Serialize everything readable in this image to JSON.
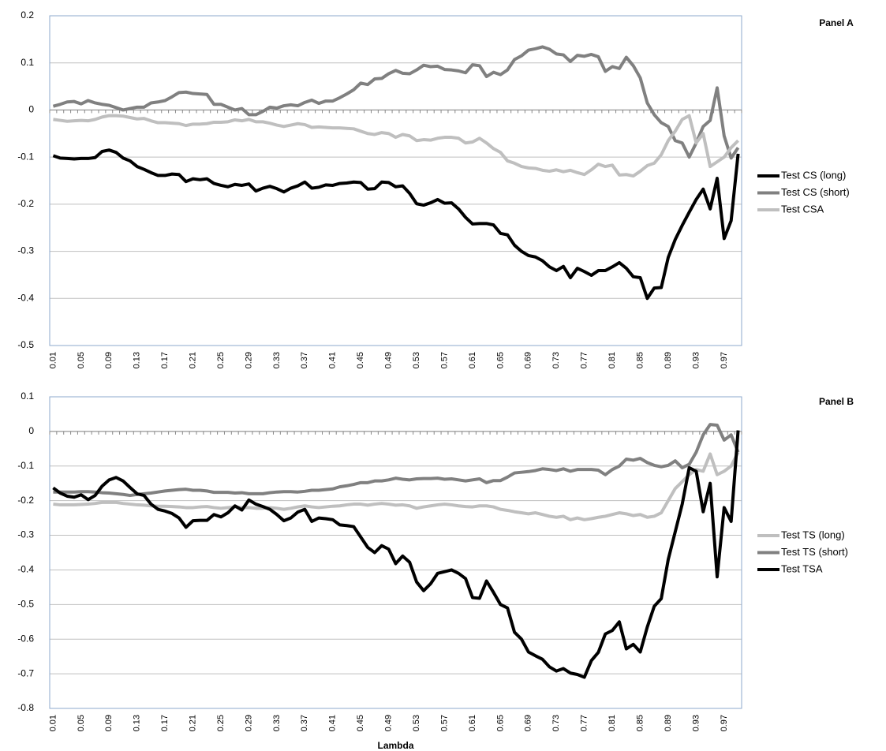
{
  "chart_data": [
    {
      "type": "line",
      "title": "Panel A",
      "categories": [
        "0.01",
        null,
        null,
        null,
        "0.05",
        null,
        null,
        null,
        "0.09",
        null,
        null,
        null,
        "0.13",
        null,
        null,
        null,
        "0.17",
        null,
        null,
        null,
        "0.21",
        null,
        null,
        null,
        "0.25",
        null,
        null,
        null,
        "0.29",
        null,
        null,
        null,
        "0.33",
        null,
        null,
        null,
        "0.37",
        null,
        null,
        null,
        "0.41",
        null,
        null,
        null,
        "0.45",
        null,
        null,
        null,
        "0.49",
        null,
        null,
        null,
        "0.53",
        null,
        null,
        null,
        "0.57",
        null,
        null,
        null,
        "0.61",
        null,
        null,
        null,
        "0.65",
        null,
        null,
        null,
        "0.69",
        null,
        null,
        null,
        "0.73",
        null,
        null,
        null,
        "0.77",
        null,
        null,
        null,
        "0.81",
        null,
        null,
        null,
        "0.85",
        null,
        null,
        null,
        "0.89",
        null,
        null,
        null,
        "0.93",
        null,
        null,
        null,
        "0.97",
        null,
        null
      ],
      "series": [
        {
          "name": "Test CS (long)",
          "color": "#000000",
          "values": [
            -0.097,
            -0.102,
            -0.103,
            -0.104,
            -0.103,
            -0.103,
            -0.101,
            -0.088,
            -0.085,
            -0.09,
            -0.102,
            -0.108,
            -0.12,
            -0.126,
            -0.133,
            -0.139,
            -0.139,
            -0.136,
            -0.137,
            -0.152,
            -0.146,
            -0.148,
            -0.146,
            -0.156,
            -0.16,
            -0.163,
            -0.158,
            -0.16,
            -0.157,
            -0.172,
            -0.166,
            -0.162,
            -0.167,
            -0.174,
            -0.166,
            -0.161,
            -0.153,
            -0.166,
            -0.164,
            -0.159,
            -0.16,
            -0.156,
            -0.155,
            -0.153,
            -0.154,
            -0.168,
            -0.167,
            -0.153,
            -0.154,
            -0.163,
            -0.161,
            -0.177,
            -0.199,
            -0.202,
            -0.197,
            -0.19,
            -0.198,
            -0.197,
            -0.21,
            -0.228,
            -0.242,
            -0.241,
            -0.241,
            -0.244,
            -0.262,
            -0.265,
            -0.287,
            -0.3,
            -0.309,
            -0.312,
            -0.32,
            -0.333,
            -0.341,
            -0.332,
            -0.356,
            -0.336,
            -0.343,
            -0.351,
            -0.341,
            -0.341,
            -0.333,
            -0.324,
            -0.336,
            -0.354,
            -0.356,
            -0.4,
            -0.378,
            -0.377,
            -0.313,
            -0.275,
            -0.245,
            -0.217,
            -0.19,
            -0.168,
            -0.21,
            -0.145,
            -0.273,
            -0.235,
            -0.093
          ]
        },
        {
          "name": "Test CS (short)",
          "color": "#808080",
          "values": [
            0.008,
            0.012,
            0.017,
            0.018,
            0.013,
            0.02,
            0.015,
            0.012,
            0.01,
            0.005,
            0.0,
            0.003,
            0.006,
            0.006,
            0.015,
            0.017,
            0.02,
            0.028,
            0.037,
            0.038,
            0.035,
            0.034,
            0.033,
            0.012,
            0.012,
            0.006,
            0.0,
            0.003,
            -0.01,
            -0.01,
            -0.003,
            0.006,
            0.004,
            0.009,
            0.011,
            0.009,
            0.016,
            0.021,
            0.014,
            0.019,
            0.019,
            0.026,
            0.034,
            0.043,
            0.057,
            0.054,
            0.066,
            0.067,
            0.077,
            0.084,
            0.078,
            0.077,
            0.085,
            0.095,
            0.092,
            0.093,
            0.086,
            0.085,
            0.083,
            0.079,
            0.096,
            0.094,
            0.071,
            0.08,
            0.075,
            0.085,
            0.107,
            0.115,
            0.127,
            0.13,
            0.134,
            0.129,
            0.119,
            0.117,
            0.103,
            0.116,
            0.114,
            0.118,
            0.113,
            0.082,
            0.092,
            0.088,
            0.112,
            0.094,
            0.068,
            0.015,
            -0.01,
            -0.027,
            -0.035,
            -0.065,
            -0.07,
            -0.1,
            -0.07,
            -0.035,
            -0.022,
            0.047,
            -0.055,
            -0.102,
            -0.08
          ]
        },
        {
          "name": "Test CSA",
          "color": "#bfbfbf",
          "values": [
            -0.02,
            -0.022,
            -0.024,
            -0.023,
            -0.022,
            -0.023,
            -0.02,
            -0.015,
            -0.012,
            -0.012,
            -0.013,
            -0.016,
            -0.019,
            -0.018,
            -0.023,
            -0.027,
            -0.027,
            -0.028,
            -0.029,
            -0.033,
            -0.03,
            -0.03,
            -0.029,
            -0.026,
            -0.026,
            -0.025,
            -0.021,
            -0.023,
            -0.02,
            -0.025,
            -0.025,
            -0.028,
            -0.032,
            -0.035,
            -0.032,
            -0.029,
            -0.031,
            -0.037,
            -0.036,
            -0.037,
            -0.038,
            -0.038,
            -0.039,
            -0.04,
            -0.045,
            -0.05,
            -0.052,
            -0.048,
            -0.05,
            -0.058,
            -0.052,
            -0.055,
            -0.065,
            -0.063,
            -0.064,
            -0.06,
            -0.058,
            -0.058,
            -0.06,
            -0.07,
            -0.068,
            -0.06,
            -0.07,
            -0.082,
            -0.09,
            -0.108,
            -0.113,
            -0.12,
            -0.123,
            -0.124,
            -0.128,
            -0.13,
            -0.127,
            -0.131,
            -0.128,
            -0.133,
            -0.137,
            -0.127,
            -0.115,
            -0.12,
            -0.117,
            -0.138,
            -0.137,
            -0.14,
            -0.13,
            -0.118,
            -0.113,
            -0.095,
            -0.065,
            -0.045,
            -0.02,
            -0.012,
            -0.07,
            -0.05,
            -0.12,
            -0.11,
            -0.1,
            -0.08,
            -0.065
          ]
        }
      ],
      "ylim": [
        -0.5,
        0.2
      ],
      "yticks": [
        -0.5,
        -0.4,
        -0.3,
        -0.2,
        -0.1,
        0,
        0.1,
        0.2
      ],
      "grid": true,
      "legend": "right"
    },
    {
      "type": "line",
      "title": "Panel B",
      "x_label": "Lambda",
      "categories": [
        "0.01",
        null,
        null,
        null,
        "0.05",
        null,
        null,
        null,
        "0.09",
        null,
        null,
        null,
        "0.13",
        null,
        null,
        null,
        "0.17",
        null,
        null,
        null,
        "0.21",
        null,
        null,
        null,
        "0.25",
        null,
        null,
        null,
        "0.29",
        null,
        null,
        null,
        "0.33",
        null,
        null,
        null,
        "0.37",
        null,
        null,
        null,
        "0.41",
        null,
        null,
        null,
        "0.45",
        null,
        null,
        null,
        "0.49",
        null,
        null,
        null,
        "0.53",
        null,
        null,
        null,
        "0.57",
        null,
        null,
        null,
        "0.61",
        null,
        null,
        null,
        "0.65",
        null,
        null,
        null,
        "0.69",
        null,
        null,
        null,
        "0.73",
        null,
        null,
        null,
        "0.77",
        null,
        null,
        null,
        "0.81",
        null,
        null,
        null,
        "0.85",
        null,
        null,
        null,
        "0.89",
        null,
        null,
        null,
        "0.93",
        null,
        null,
        null,
        "0.97",
        null,
        null
      ],
      "series": [
        {
          "name": "Test TS (long)",
          "color": "#bfbfbf",
          "values": [
            -0.21,
            -0.212,
            -0.212,
            -0.212,
            -0.211,
            -0.21,
            -0.208,
            -0.205,
            -0.205,
            -0.205,
            -0.208,
            -0.21,
            -0.212,
            -0.213,
            -0.215,
            -0.216,
            -0.216,
            -0.217,
            -0.218,
            -0.22,
            -0.22,
            -0.218,
            -0.217,
            -0.22,
            -0.222,
            -0.22,
            -0.218,
            -0.22,
            -0.22,
            -0.222,
            -0.222,
            -0.22,
            -0.222,
            -0.225,
            -0.222,
            -0.218,
            -0.215,
            -0.218,
            -0.22,
            -0.218,
            -0.216,
            -0.215,
            -0.212,
            -0.21,
            -0.21,
            -0.213,
            -0.21,
            -0.208,
            -0.21,
            -0.213,
            -0.212,
            -0.215,
            -0.222,
            -0.218,
            -0.215,
            -0.212,
            -0.21,
            -0.212,
            -0.215,
            -0.217,
            -0.218,
            -0.215,
            -0.215,
            -0.218,
            -0.225,
            -0.228,
            -0.232,
            -0.235,
            -0.238,
            -0.235,
            -0.24,
            -0.245,
            -0.248,
            -0.245,
            -0.255,
            -0.25,
            -0.255,
            -0.252,
            -0.248,
            -0.245,
            -0.24,
            -0.235,
            -0.238,
            -0.243,
            -0.24,
            -0.248,
            -0.245,
            -0.235,
            -0.2,
            -0.165,
            -0.145,
            -0.125,
            -0.11,
            -0.115,
            -0.065,
            -0.125,
            -0.115,
            -0.1,
            -0.06
          ]
        },
        {
          "name": "Test TS (short)",
          "color": "#808080",
          "values": [
            -0.175,
            -0.175,
            -0.175,
            -0.175,
            -0.174,
            -0.174,
            -0.175,
            -0.177,
            -0.178,
            -0.18,
            -0.182,
            -0.185,
            -0.182,
            -0.18,
            -0.178,
            -0.175,
            -0.172,
            -0.17,
            -0.168,
            -0.167,
            -0.17,
            -0.17,
            -0.172,
            -0.176,
            -0.176,
            -0.176,
            -0.178,
            -0.177,
            -0.18,
            -0.18,
            -0.18,
            -0.177,
            -0.175,
            -0.174,
            -0.174,
            -0.175,
            -0.173,
            -0.17,
            -0.17,
            -0.168,
            -0.166,
            -0.16,
            -0.157,
            -0.153,
            -0.148,
            -0.148,
            -0.143,
            -0.143,
            -0.14,
            -0.135,
            -0.138,
            -0.14,
            -0.137,
            -0.136,
            -0.136,
            -0.135,
            -0.138,
            -0.137,
            -0.14,
            -0.143,
            -0.14,
            -0.137,
            -0.148,
            -0.142,
            -0.142,
            -0.132,
            -0.12,
            -0.118,
            -0.116,
            -0.113,
            -0.108,
            -0.11,
            -0.113,
            -0.108,
            -0.115,
            -0.11,
            -0.11,
            -0.11,
            -0.112,
            -0.125,
            -0.11,
            -0.1,
            -0.08,
            -0.083,
            -0.078,
            -0.09,
            -0.098,
            -0.102,
            -0.098,
            -0.085,
            -0.105,
            -0.095,
            -0.06,
            -0.01,
            0.02,
            0.018,
            -0.025,
            -0.01,
            -0.06
          ]
        },
        {
          "name": "Test TSA",
          "color": "#000000",
          "values": [
            -0.163,
            -0.178,
            -0.187,
            -0.19,
            -0.183,
            -0.197,
            -0.185,
            -0.158,
            -0.14,
            -0.133,
            -0.143,
            -0.162,
            -0.18,
            -0.185,
            -0.21,
            -0.225,
            -0.23,
            -0.237,
            -0.25,
            -0.277,
            -0.258,
            -0.257,
            -0.257,
            -0.24,
            -0.247,
            -0.235,
            -0.215,
            -0.227,
            -0.198,
            -0.21,
            -0.217,
            -0.225,
            -0.24,
            -0.258,
            -0.25,
            -0.233,
            -0.225,
            -0.26,
            -0.25,
            -0.252,
            -0.255,
            -0.27,
            -0.272,
            -0.275,
            -0.305,
            -0.335,
            -0.35,
            -0.33,
            -0.34,
            -0.382,
            -0.36,
            -0.378,
            -0.435,
            -0.46,
            -0.44,
            -0.41,
            -0.405,
            -0.4,
            -0.41,
            -0.425,
            -0.48,
            -0.482,
            -0.432,
            -0.465,
            -0.5,
            -0.51,
            -0.58,
            -0.6,
            -0.637,
            -0.648,
            -0.658,
            -0.68,
            -0.692,
            -0.685,
            -0.698,
            -0.702,
            -0.71,
            -0.662,
            -0.638,
            -0.585,
            -0.575,
            -0.55,
            -0.628,
            -0.615,
            -0.637,
            -0.565,
            -0.505,
            -0.483,
            -0.37,
            -0.29,
            -0.21,
            -0.105,
            -0.115,
            -0.232,
            -0.15,
            -0.42,
            -0.22,
            -0.26,
            0.003
          ]
        }
      ],
      "ylim": [
        -0.8,
        0.1
      ],
      "yticks": [
        -0.8,
        -0.7,
        -0.6,
        -0.5,
        -0.4,
        -0.3,
        -0.2,
        -0.1,
        0,
        0.1
      ],
      "grid": true,
      "legend": "right"
    }
  ]
}
